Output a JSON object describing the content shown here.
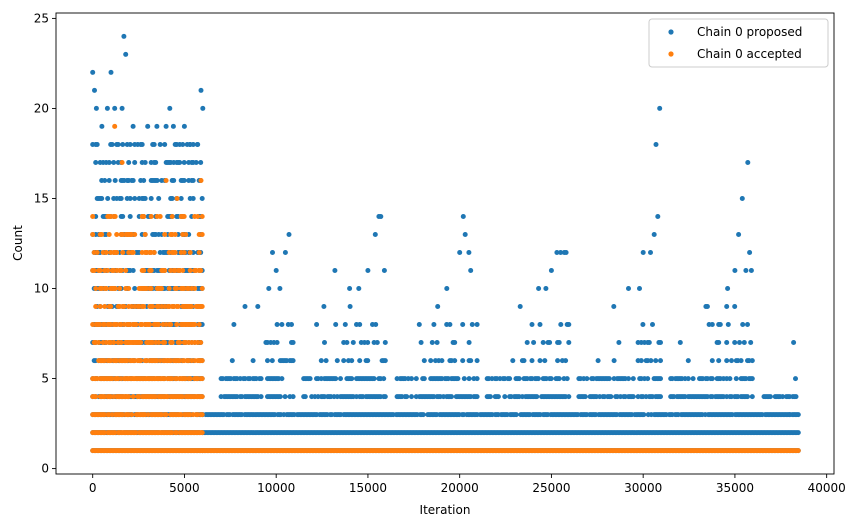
{
  "chart_data": {
    "type": "scatter",
    "xlabel": "Iteration",
    "ylabel": "Count",
    "xlim": [
      -2000,
      40400
    ],
    "ylim": [
      -0.3,
      25.3
    ],
    "xticks": [
      0,
      5000,
      10000,
      15000,
      20000,
      25000,
      30000,
      35000,
      40000
    ],
    "xtick_labels": [
      "0",
      "5000",
      "10000",
      "15000",
      "20000",
      "25000",
      "30000",
      "35000",
      "40000"
    ],
    "yticks": [
      0,
      5,
      10,
      15,
      20,
      25
    ],
    "ytick_labels": [
      "0",
      "5",
      "10",
      "15",
      "20",
      "25"
    ],
    "grid": false,
    "legend_position": "top-right",
    "series": [
      {
        "name": "Chain 0 proposed",
        "color": "#1f77b4",
        "x": [
          0,
          100,
          200,
          500,
          800,
          1000,
          1200,
          1600,
          1700,
          1800,
          2200,
          3000,
          3500,
          4000,
          4200,
          4400,
          5000,
          5300,
          5700,
          5900,
          6000,
          8300,
          9000,
          9600,
          9800,
          10000,
          10200,
          10500,
          10700,
          12200,
          12600,
          13200,
          14000,
          14500,
          15000,
          15400,
          15600,
          15700,
          15900,
          17800,
          18800,
          19300,
          20000,
          20200,
          20300,
          20500,
          20600,
          23300,
          24300,
          24700,
          25000,
          25300,
          25500,
          25700,
          25800,
          28400,
          29200,
          29800,
          30000,
          30400,
          30600,
          30700,
          30800,
          30900,
          33500,
          34600,
          35000,
          35200,
          35400,
          35600,
          35700,
          35800,
          35900,
          37600,
          38000,
          38200,
          38300
        ],
        "y": [
          22,
          21,
          20,
          19,
          20,
          22,
          20,
          20,
          24,
          23,
          19,
          19,
          19,
          19,
          20,
          19,
          19,
          18,
          18,
          21,
          20,
          9,
          9,
          10,
          12,
          11,
          10,
          12,
          13,
          8,
          9,
          11,
          10,
          10,
          11,
          13,
          14,
          14,
          11,
          8,
          9,
          10,
          12,
          14,
          13,
          12,
          11,
          9,
          10,
          10,
          11,
          12,
          12,
          12,
          12,
          9,
          10,
          10,
          12,
          12,
          13,
          18,
          14,
          20,
          9,
          10,
          11,
          13,
          15,
          11,
          17,
          12,
          11,
          4,
          3,
          7,
          5
        ],
        "band_ranges": [
          {
            "x_start": 0,
            "x_end": 6000,
            "y_min": 1,
            "y_max": 18
          },
          {
            "x_start": 6000,
            "x_end": 38500,
            "y_min": 1,
            "y_max": 2
          },
          {
            "x_start": 6000,
            "x_end": 38500,
            "y_min": 3,
            "y_max": 3
          }
        ]
      },
      {
        "name": "Chain 0 accepted",
        "color": "#ff7f0e",
        "x": [
          1200,
          1600,
          4000,
          4600,
          5900
        ],
        "y": [
          19,
          17,
          16,
          15,
          16
        ],
        "band_ranges": [
          {
            "x_start": 0,
            "x_end": 6000,
            "y_min": 1,
            "y_max": 14
          },
          {
            "x_start": 6000,
            "x_end": 38500,
            "y_min": 1,
            "y_max": 1
          }
        ]
      }
    ]
  }
}
